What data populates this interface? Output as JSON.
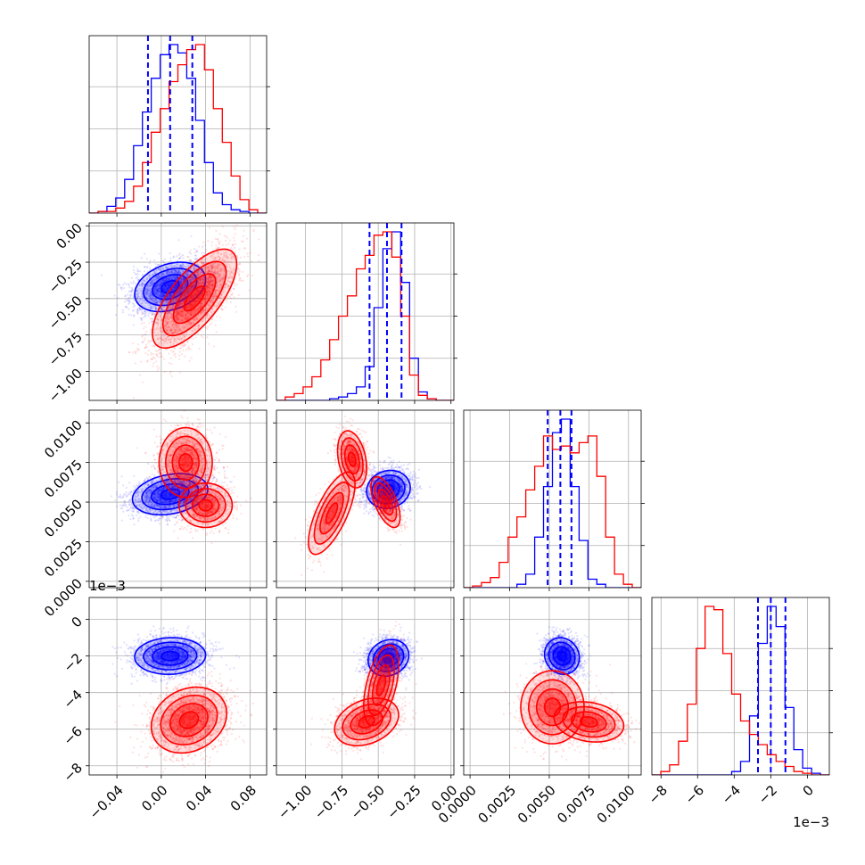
{
  "chart_data": {
    "type": "corner",
    "series": [
      {
        "name": "",
        "color": "#0000ff"
      },
      {
        "name": "",
        "color": "#ff0000"
      }
    ],
    "parameters": [
      {
        "index": 0,
        "range": [
          -0.065,
          0.095
        ],
        "ticks": [
          -0.04,
          0.0,
          0.04,
          0.08
        ],
        "tick_labels": [
          "−0.04",
          "0.00",
          "0.04",
          "0.08"
        ],
        "offset_label": ""
      },
      {
        "index": 1,
        "range": [
          -1.2,
          0.02
        ],
        "ticks": [
          -1.0,
          -0.75,
          -0.5,
          -0.25,
          0.0
        ],
        "tick_labels": [
          "−1.00",
          "−0.75",
          "−0.50",
          "−0.25",
          "0.00"
        ],
        "offset_label": ""
      },
      {
        "index": 2,
        "range": [
          -0.0004,
          0.0108
        ],
        "ticks": [
          0.0,
          0.0025,
          0.005,
          0.0075,
          0.01
        ],
        "tick_labels": [
          "0.0000",
          "0.0025",
          "0.0050",
          "0.0075",
          "0.0100"
        ],
        "offset_label": ""
      },
      {
        "index": 3,
        "range": [
          -8.5,
          1.2
        ],
        "ticks": [
          -8,
          -6,
          -4,
          -2,
          0
        ],
        "tick_labels": [
          "−8",
          "−6",
          "−4",
          "−2",
          "0"
        ],
        "offset_label": "1e−3"
      }
    ],
    "histograms": [
      {
        "param": 0,
        "quantile_lines": [
          -0.012,
          0.008,
          0.028
        ],
        "series": [
          {
            "name": "",
            "peak_x": 0.008,
            "edges": [
              -0.065,
              -0.057,
              -0.049,
              -0.041,
              -0.033,
              -0.025,
              -0.017,
              -0.009,
              -0.001,
              0.007,
              0.015,
              0.023,
              0.031,
              0.039,
              0.047,
              0.055,
              0.063,
              0.071,
              0.079,
              0.087,
              0.095
            ],
            "counts": [
              0,
              0.01,
              0.04,
              0.09,
              0.2,
              0.4,
              0.6,
              0.8,
              0.94,
              1.0,
              0.95,
              0.8,
              0.55,
              0.3,
              0.12,
              0.05,
              0.02,
              0.01,
              0,
              0
            ]
          },
          {
            "name": "",
            "peak_x": 0.03,
            "edges": [
              -0.065,
              -0.057,
              -0.049,
              -0.041,
              -0.033,
              -0.025,
              -0.017,
              -0.009,
              -0.001,
              0.007,
              0.015,
              0.023,
              0.031,
              0.039,
              0.047,
              0.055,
              0.063,
              0.071,
              0.079,
              0.087,
              0.095
            ],
            "counts": [
              0,
              0.01,
              0.01,
              0.03,
              0.07,
              0.16,
              0.3,
              0.48,
              0.62,
              0.78,
              0.88,
              0.97,
              1.0,
              0.85,
              0.62,
              0.42,
              0.22,
              0.08,
              0.02,
              0
            ]
          }
        ]
      },
      {
        "param": 1,
        "quantile_lines": [
          -0.56,
          -0.44,
          -0.34
        ],
        "series": [
          {
            "name": "",
            "peak_x": -0.43,
            "edges": [
              -1.2,
              -1.139,
              -1.078,
              -1.017,
              -0.956,
              -0.895,
              -0.834,
              -0.773,
              -0.712,
              -0.651,
              -0.59,
              -0.529,
              -0.468,
              -0.407,
              -0.346,
              -0.285,
              -0.224,
              -0.163,
              -0.102,
              -0.041,
              0.02
            ],
            "counts": [
              0,
              0,
              0,
              0,
              0,
              0,
              0.01,
              0.02,
              0.04,
              0.08,
              0.2,
              0.55,
              0.9,
              1.0,
              0.7,
              0.25,
              0.05,
              0.01,
              0,
              0
            ]
          },
          {
            "name": "",
            "peak_x": -0.5,
            "edges": [
              -1.2,
              -1.139,
              -1.078,
              -1.017,
              -0.956,
              -0.895,
              -0.834,
              -0.773,
              -0.712,
              -0.651,
              -0.59,
              -0.529,
              -0.468,
              -0.407,
              -0.346,
              -0.285,
              -0.224,
              -0.163,
              -0.102,
              -0.041,
              0.02
            ],
            "counts": [
              0,
              0.02,
              0.04,
              0.08,
              0.14,
              0.24,
              0.36,
              0.5,
              0.62,
              0.78,
              0.86,
              0.98,
              1.0,
              0.85,
              0.5,
              0.15,
              0.03,
              0.01,
              0,
              0
            ]
          }
        ]
      },
      {
        "param": 2,
        "quantile_lines": [
          0.0049,
          0.0057,
          0.0064
        ],
        "series": [
          {
            "name": "",
            "peak_x": 0.0052,
            "edges": [
              -0.0004,
              0.00016,
              0.00072,
              0.00128,
              0.00184,
              0.0024,
              0.00296,
              0.00352,
              0.00408,
              0.00464,
              0.0052,
              0.00576,
              0.00632,
              0.00688,
              0.00744,
              0.008,
              0.00856,
              0.00912,
              0.00968,
              0.01024,
              0.0108
            ],
            "counts": [
              0,
              0,
              0,
              0,
              0,
              0,
              0.02,
              0.08,
              0.3,
              0.6,
              0.92,
              1.0,
              0.6,
              0.28,
              0.05,
              0.02,
              0,
              0,
              0,
              0
            ]
          },
          {
            "name": "",
            "peak_x": 0.0073,
            "edges": [
              -0.0004,
              0.00016,
              0.00072,
              0.00128,
              0.00184,
              0.0024,
              0.00296,
              0.00352,
              0.00408,
              0.00464,
              0.0052,
              0.00576,
              0.00632,
              0.00688,
              0.00744,
              0.008,
              0.00856,
              0.00912,
              0.00968,
              0.01024,
              0.0108
            ],
            "counts": [
              0,
              0.01,
              0.03,
              0.06,
              0.15,
              0.3,
              0.42,
              0.58,
              0.72,
              0.9,
              0.82,
              0.84,
              0.8,
              0.86,
              0.9,
              0.66,
              0.3,
              0.08,
              0.02,
              0
            ]
          }
        ]
      },
      {
        "param": 3,
        "quantile_lines": [
          -2.7,
          -2.0,
          -1.2
        ],
        "series": [
          {
            "name": "",
            "peak_x": -2.0,
            "edges": [
              -8.5,
              -8.015,
              -7.53,
              -7.045,
              -6.56,
              -6.075,
              -5.59,
              -5.105,
              -4.62,
              -4.135,
              -3.65,
              -3.165,
              -2.68,
              -2.195,
              -1.71,
              -1.225,
              -0.74,
              -0.255,
              0.23,
              0.715,
              1.2
            ],
            "counts": [
              0,
              0,
              0,
              0,
              0,
              0,
              0,
              0,
              0,
              0.02,
              0.08,
              0.35,
              0.78,
              1.0,
              0.88,
              0.4,
              0.15,
              0.04,
              0.01,
              0
            ]
          },
          {
            "name": "",
            "peak_x": -5.6,
            "edges": [
              -8.5,
              -8.015,
              -7.53,
              -7.045,
              -6.56,
              -6.075,
              -5.59,
              -5.105,
              -4.62,
              -4.135,
              -3.65,
              -3.165,
              -2.68,
              -2.195,
              -1.71,
              -1.225,
              -0.74,
              -0.255,
              0.23,
              0.715,
              1.2
            ],
            "counts": [
              0,
              0.02,
              0.06,
              0.2,
              0.42,
              0.75,
              1.0,
              0.98,
              0.72,
              0.48,
              0.32,
              0.24,
              0.18,
              0.12,
              0.08,
              0.05,
              0.02,
              0.01,
              0,
              0
            ]
          }
        ]
      }
    ],
    "pairs": [
      {
        "row": 1,
        "col": 0,
        "series": [
          {
            "name": "",
            "components": [
              {
                "weight": 1,
                "mean": [
                  0.008,
                  -0.42
                ],
                "sd": [
                  0.016,
                  0.085
                ],
                "corr": 0.3
              }
            ]
          },
          {
            "name": "",
            "components": [
              {
                "weight": 1,
                "mean": [
                  0.03,
                  -0.5
                ],
                "sd": [
                  0.019,
                  0.17
                ],
                "corr": 0.7
              }
            ]
          }
        ]
      },
      {
        "row": 2,
        "col": 0,
        "series": [
          {
            "name": "",
            "components": [
              {
                "weight": 1,
                "mean": [
                  0.008,
                  0.0055
                ],
                "sd": [
                  0.017,
                  0.00065
                ],
                "corr": 0.25
              }
            ]
          },
          {
            "name": "",
            "components": [
              {
                "weight": 0.6,
                "mean": [
                  0.022,
                  0.0075
                ],
                "sd": [
                  0.012,
                  0.0011
                ],
                "corr": 0.0
              },
              {
                "weight": 0.4,
                "mean": [
                  0.04,
                  0.0048
                ],
                "sd": [
                  0.012,
                  0.0007
                ],
                "corr": 0.0
              }
            ]
          }
        ]
      },
      {
        "row": 2,
        "col": 1,
        "series": [
          {
            "name": "",
            "components": [
              {
                "weight": 1,
                "mean": [
                  -0.43,
                  0.0058
                ],
                "sd": [
                  0.075,
                  0.0006
                ],
                "corr": 0.1
              }
            ]
          },
          {
            "name": "",
            "components": [
              {
                "weight": 0.45,
                "mean": [
                  -0.68,
                  0.0077
                ],
                "sd": [
                  0.05,
                  0.0009
                ],
                "corr": -0.3
              },
              {
                "weight": 0.3,
                "mean": [
                  -0.45,
                  0.005
                ],
                "sd": [
                  0.05,
                  0.0008
                ],
                "corr": -0.6
              },
              {
                "weight": 0.25,
                "mean": [
                  -0.82,
                  0.0043
                ],
                "sd": [
                  0.08,
                  0.0013
                ],
                "corr": 0.7
              }
            ]
          }
        ]
      },
      {
        "row": 3,
        "col": 0,
        "series": [
          {
            "name": "",
            "components": [
              {
                "weight": 1,
                "mean": [
                  0.008,
                  -2.0
                ],
                "sd": [
                  0.016,
                  0.5
                ],
                "corr": 0.05
              }
            ]
          },
          {
            "name": "",
            "components": [
              {
                "weight": 1,
                "mean": [
                  0.025,
                  -5.5
                ],
                "sd": [
                  0.017,
                  0.9
                ],
                "corr": 0.2
              }
            ]
          }
        ]
      },
      {
        "row": 3,
        "col": 1,
        "series": [
          {
            "name": "",
            "components": [
              {
                "weight": 1,
                "mean": [
                  -0.43,
                  -2.1
                ],
                "sd": [
                  0.07,
                  0.5
                ],
                "corr": 0.15
              }
            ]
          },
          {
            "name": "",
            "components": [
              {
                "weight": 0.6,
                "mean": [
                  -0.58,
                  -5.6
                ],
                "sd": [
                  0.11,
                  0.65
                ],
                "corr": 0.3
              },
              {
                "weight": 0.4,
                "mean": [
                  -0.48,
                  -3.6
                ],
                "sd": [
                  0.06,
                  1.1
                ],
                "corr": 0.5
              }
            ]
          }
        ]
      },
      {
        "row": 3,
        "col": 2,
        "series": [
          {
            "name": "",
            "components": [
              {
                "weight": 1,
                "mean": [
                  0.0058,
                  -2.0
                ],
                "sd": [
                  0.00055,
                  0.5
                ],
                "corr": -0.1
              }
            ]
          },
          {
            "name": "",
            "components": [
              {
                "weight": 0.55,
                "mean": [
                  0.0075,
                  -5.6
                ],
                "sd": [
                  0.0011,
                  0.55
                ],
                "corr": -0.2
              },
              {
                "weight": 0.45,
                "mean": [
                  0.0052,
                  -4.8
                ],
                "sd": [
                  0.001,
                  1.0
                ],
                "corr": 0.0
              }
            ]
          }
        ]
      }
    ],
    "grid": true,
    "legend": "none"
  }
}
